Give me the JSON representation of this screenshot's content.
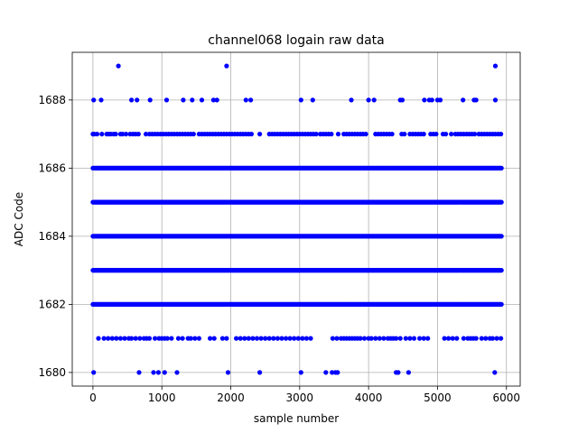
{
  "chart_data": {
    "type": "scatter",
    "title": "channel068 logain raw data",
    "xlabel": "sample number",
    "ylabel": "ADC Code",
    "xlim": [
      -300,
      6200
    ],
    "ylim": [
      1679.6,
      1689.4
    ],
    "xticks": [
      0,
      1000,
      2000,
      3000,
      4000,
      5000,
      6000
    ],
    "yticks": [
      1680,
      1682,
      1684,
      1686,
      1688
    ],
    "grid": true,
    "marker_color": "#0000ff",
    "x_max": 5930,
    "series": [
      {
        "values_by_code": [
          {
            "y": 1689,
            "x": [
              370,
              1940,
              5840
            ]
          },
          {
            "y": 1688,
            "x": [
              10,
              120,
              560,
              640,
              830,
              1070,
              1310,
              1440,
              1580,
              1750,
              1800,
              2220,
              2290,
              3020,
              3190,
              3750,
              4000,
              4080,
              4460,
              4490,
              4810,
              4880,
              4920,
              5000,
              5040,
              5370,
              5530,
              5560,
              5840
            ]
          },
          {
            "y": 1687,
            "x": [
              0,
              20,
              60,
              130,
              200,
              230,
              260,
              300,
              330,
              400,
              430,
              480,
              540,
              580,
              620,
              660,
              770,
              820,
              860,
              900,
              940,
              980,
              1020,
              1060,
              1100,
              1140,
              1180,
              1220,
              1260,
              1300,
              1340,
              1380,
              1420,
              1460,
              1540,
              1580,
              1620,
              1660,
              1700,
              1740,
              1780,
              1820,
              1860,
              1900,
              1940,
              1980,
              2020,
              2060,
              2100,
              2140,
              2180,
              2220,
              2260,
              2300,
              2420,
              2560,
              2600,
              2640,
              2680,
              2720,
              2760,
              2800,
              2840,
              2880,
              2920,
              2960,
              3000,
              3040,
              3080,
              3120,
              3160,
              3200,
              3240,
              3300,
              3340,
              3380,
              3420,
              3460,
              3560,
              3640,
              3680,
              3720,
              3760,
              3800,
              3840,
              3880,
              3920,
              3960,
              4100,
              4140,
              4180,
              4220,
              4260,
              4300,
              4340,
              4480,
              4520,
              4600,
              4640,
              4680,
              4720,
              4760,
              4800,
              4900,
              4940,
              4980,
              5080,
              5120,
              5200,
              5260,
              5300,
              5340,
              5380,
              5420,
              5460,
              5500,
              5540,
              5600,
              5640,
              5680,
              5720,
              5760,
              5800,
              5840,
              5880,
              5920
            ]
          },
          {
            "y": 1686,
            "range": [
              0,
              5930
            ]
          },
          {
            "y": 1685,
            "range": [
              0,
              5930
            ]
          },
          {
            "y": 1684,
            "range": [
              0,
              5930
            ]
          },
          {
            "y": 1683,
            "range": [
              0,
              5930
            ]
          },
          {
            "y": 1682,
            "range": [
              0,
              5930
            ]
          },
          {
            "y": 1681,
            "x": [
              80,
              160,
              220,
              280,
              340,
              400,
              460,
              520,
              560,
              620,
              680,
              740,
              780,
              820,
              900,
              960,
              1000,
              1040,
              1080,
              1140,
              1240,
              1300,
              1380,
              1420,
              1480,
              1540,
              1700,
              1760,
              1880,
              1940,
              2080,
              2140,
              2200,
              2260,
              2320,
              2380,
              2440,
              2500,
              2560,
              2620,
              2680,
              2740,
              2800,
              2860,
              2920,
              2980,
              3040,
              3100,
              3160,
              3480,
              3540,
              3600,
              3640,
              3680,
              3720,
              3760,
              3800,
              3840,
              3880,
              3940,
              4000,
              4040,
              4100,
              4160,
              4220,
              4280,
              4320,
              4360,
              4400,
              4460,
              4540,
              4600,
              4660,
              4740,
              4800,
              4860,
              5100,
              5160,
              5220,
              5280,
              5380,
              5440,
              5480,
              5520,
              5560,
              5640,
              5700,
              5760,
              5800,
              5860,
              5920
            ]
          },
          {
            "y": 1680,
            "x": [
              10,
              670,
              880,
              950,
              1040,
              1220,
              1960,
              2420,
              3020,
              3380,
              3470,
              3520,
              3550,
              4400,
              4430,
              4580,
              5830
            ]
          }
        ]
      }
    ]
  }
}
